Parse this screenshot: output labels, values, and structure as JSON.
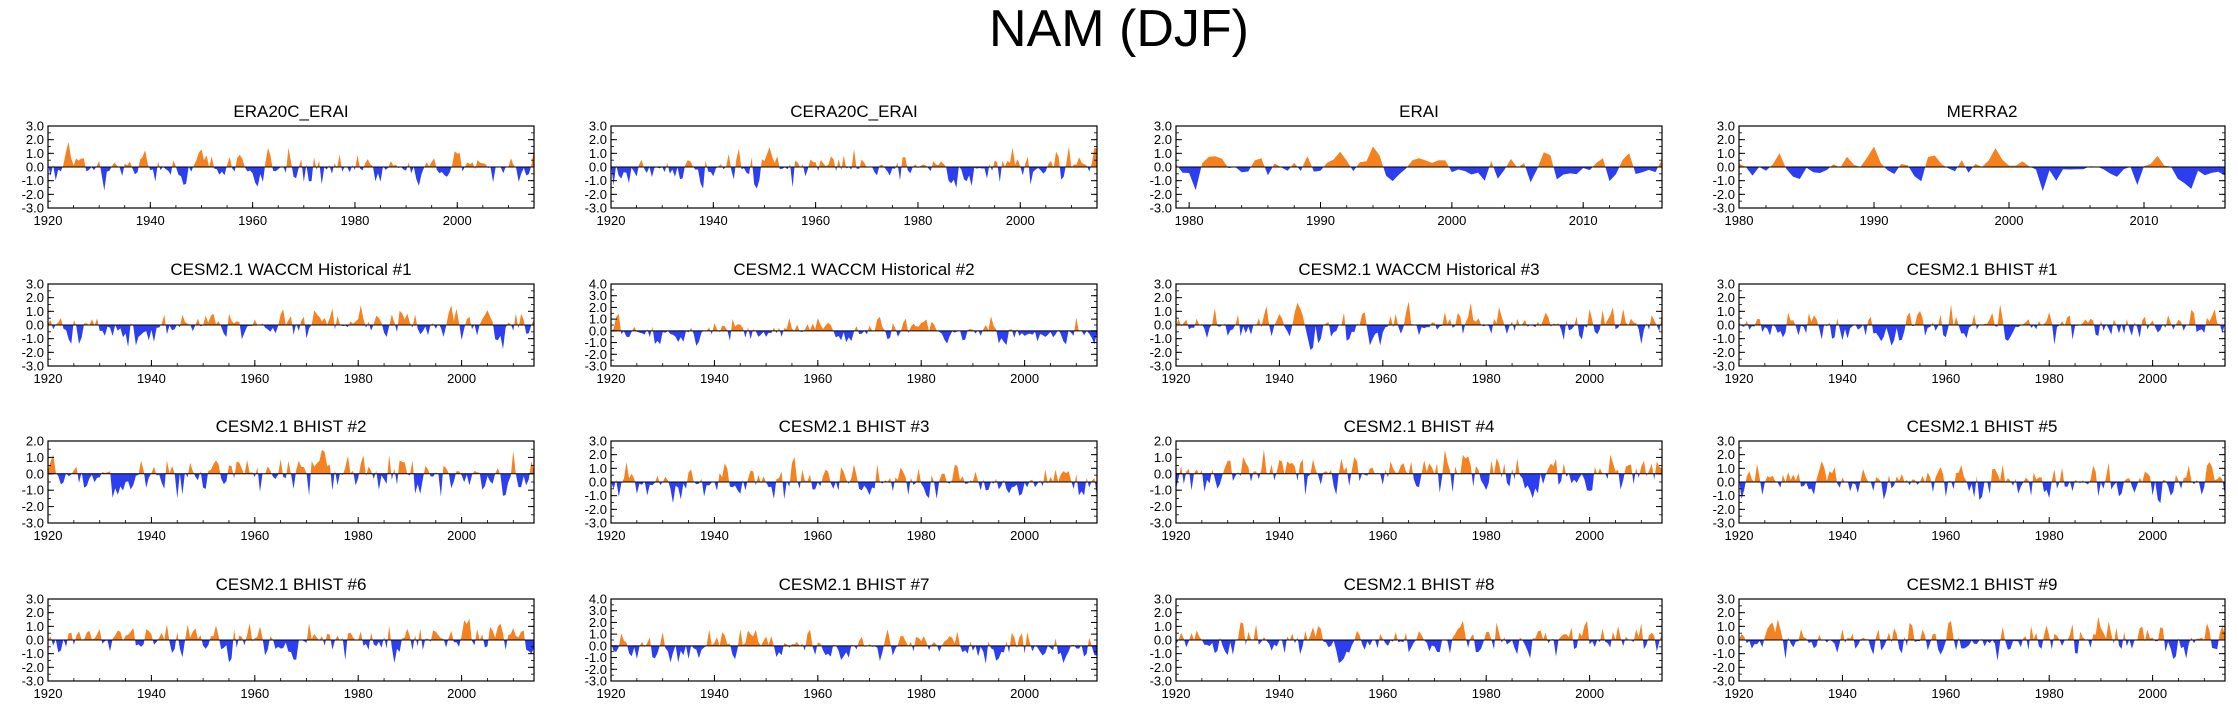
{
  "figure_title": "NAM (DJF)",
  "colors": {
    "positive": "#f5811f",
    "negative": "#2b3ff0",
    "axis": "#000000",
    "zero_line": "#000000"
  },
  "chart_data": [
    {
      "type": "area",
      "title": "ERA20C_ERAI",
      "start_year": 1920,
      "end_year": 2015,
      "x_ticks": [
        1920,
        1940,
        1960,
        1980,
        2000
      ],
      "y_ticks": [
        "3.0",
        "2.0",
        "1.0",
        "0.0",
        "-1.0",
        "-2.0",
        "-3.0"
      ],
      "ylim": [
        -3,
        3
      ],
      "seed": 11
    },
    {
      "type": "area",
      "title": "CERA20C_ERAI",
      "start_year": 1920,
      "end_year": 2015,
      "x_ticks": [
        1920,
        1940,
        1960,
        1980,
        2000
      ],
      "y_ticks": [
        "3.0",
        "2.0",
        "1.0",
        "0.0",
        "-1.0",
        "-2.0",
        "-3.0"
      ],
      "ylim": [
        -3,
        3
      ],
      "seed": 23
    },
    {
      "type": "area",
      "title": "ERAI",
      "start_year": 1979,
      "end_year": 2016,
      "x_ticks": [
        1980,
        1990,
        2000,
        2010
      ],
      "y_ticks": [
        "3.0",
        "2.0",
        "1.0",
        "0.0",
        "-1.0",
        "-2.0",
        "-3.0"
      ],
      "ylim": [
        -3,
        3
      ],
      "seed": 37
    },
    {
      "type": "area",
      "title": "MERRA2",
      "start_year": 1980,
      "end_year": 2016,
      "x_ticks": [
        1980,
        1990,
        2000,
        2010
      ],
      "y_ticks": [
        "3.0",
        "2.0",
        "1.0",
        "0.0",
        "-1.0",
        "-2.0",
        "-3.0"
      ],
      "ylim": [
        -3,
        3
      ],
      "seed": 41
    },
    {
      "type": "area",
      "title": "CESM2.1 WACCM Historical #1",
      "start_year": 1920,
      "end_year": 2014,
      "x_ticks": [
        1920,
        1940,
        1960,
        1980,
        2000
      ],
      "y_ticks": [
        "3.0",
        "2.0",
        "1.0",
        "0.0",
        "-1.0",
        "-2.0",
        "-3.0"
      ],
      "ylim": [
        -3,
        3
      ],
      "seed": 53
    },
    {
      "type": "area",
      "title": "CESM2.1 WACCM Historical #2",
      "start_year": 1920,
      "end_year": 2014,
      "x_ticks": [
        1920,
        1940,
        1960,
        1980,
        2000
      ],
      "y_ticks": [
        "4.0",
        "3.0",
        "2.0",
        "1.0",
        "0.0",
        "-1.0",
        "-2.0",
        "-3.0"
      ],
      "ylim": [
        -3,
        4
      ],
      "seed": 67
    },
    {
      "type": "area",
      "title": "CESM2.1 WACCM Historical #3",
      "start_year": 1920,
      "end_year": 2014,
      "x_ticks": [
        1920,
        1940,
        1960,
        1980,
        2000
      ],
      "y_ticks": [
        "3.0",
        "2.0",
        "1.0",
        "0.0",
        "-1.0",
        "-2.0",
        "-3.0"
      ],
      "ylim": [
        -3,
        3
      ],
      "seed": 71
    },
    {
      "type": "area",
      "title": "CESM2.1 BHIST #1",
      "start_year": 1920,
      "end_year": 2014,
      "x_ticks": [
        1920,
        1940,
        1960,
        1980,
        2000
      ],
      "y_ticks": [
        "3.0",
        "2.0",
        "1.0",
        "0.0",
        "-1.0",
        "-2.0",
        "-3.0"
      ],
      "ylim": [
        -3,
        3
      ],
      "seed": 83
    },
    {
      "type": "area",
      "title": "CESM2.1 BHIST #2",
      "start_year": 1920,
      "end_year": 2014,
      "x_ticks": [
        1920,
        1940,
        1960,
        1980,
        2000
      ],
      "y_ticks": [
        "2.0",
        "1.0",
        "0.0",
        "-1.0",
        "-2.0",
        "-3.0"
      ],
      "ylim": [
        -3,
        2
      ],
      "seed": 97
    },
    {
      "type": "area",
      "title": "CESM2.1 BHIST #3",
      "start_year": 1920,
      "end_year": 2014,
      "x_ticks": [
        1920,
        1940,
        1960,
        1980,
        2000
      ],
      "y_ticks": [
        "3.0",
        "2.0",
        "1.0",
        "0.0",
        "-1.0",
        "-2.0",
        "-3.0"
      ],
      "ylim": [
        -3,
        3
      ],
      "seed": 101
    },
    {
      "type": "area",
      "title": "CESM2.1 BHIST #4",
      "start_year": 1920,
      "end_year": 2014,
      "x_ticks": [
        1920,
        1940,
        1960,
        1980,
        2000
      ],
      "y_ticks": [
        "2.0",
        "1.0",
        "0.0",
        "-1.0",
        "-2.0",
        "-3.0"
      ],
      "ylim": [
        -3,
        2
      ],
      "seed": 113
    },
    {
      "type": "area",
      "title": "CESM2.1 BHIST #5",
      "start_year": 1920,
      "end_year": 2014,
      "x_ticks": [
        1920,
        1940,
        1960,
        1980,
        2000
      ],
      "y_ticks": [
        "3.0",
        "2.0",
        "1.0",
        "0.0",
        "-1.0",
        "-2.0",
        "-3.0"
      ],
      "ylim": [
        -3,
        3
      ],
      "seed": 127
    },
    {
      "type": "area",
      "title": "CESM2.1 BHIST #6",
      "start_year": 1920,
      "end_year": 2014,
      "x_ticks": [
        1920,
        1940,
        1960,
        1980,
        2000
      ],
      "y_ticks": [
        "3.0",
        "2.0",
        "1.0",
        "0.0",
        "-1.0",
        "-2.0",
        "-3.0"
      ],
      "ylim": [
        -3,
        3
      ],
      "seed": 131
    },
    {
      "type": "area",
      "title": "CESM2.1 BHIST #7",
      "start_year": 1920,
      "end_year": 2014,
      "x_ticks": [
        1920,
        1940,
        1960,
        1980,
        2000
      ],
      "y_ticks": [
        "4.0",
        "3.0",
        "2.0",
        "1.0",
        "0.0",
        "-1.0",
        "-2.0",
        "-3.0"
      ],
      "ylim": [
        -3,
        4
      ],
      "seed": 139
    },
    {
      "type": "area",
      "title": "CESM2.1 BHIST #8",
      "start_year": 1920,
      "end_year": 2014,
      "x_ticks": [
        1920,
        1940,
        1960,
        1980,
        2000
      ],
      "y_ticks": [
        "3.0",
        "2.0",
        "1.0",
        "0.0",
        "-1.0",
        "-2.0",
        "-3.0"
      ],
      "ylim": [
        -3,
        3
      ],
      "seed": 149
    },
    {
      "type": "area",
      "title": "CESM2.1 BHIST #9",
      "start_year": 1920,
      "end_year": 2014,
      "x_ticks": [
        1920,
        1940,
        1960,
        1980,
        2000
      ],
      "y_ticks": [
        "3.0",
        "2.0",
        "1.0",
        "0.0",
        "-1.0",
        "-2.0",
        "-3.0"
      ],
      "ylim": [
        -3,
        3
      ],
      "seed": 157
    }
  ]
}
